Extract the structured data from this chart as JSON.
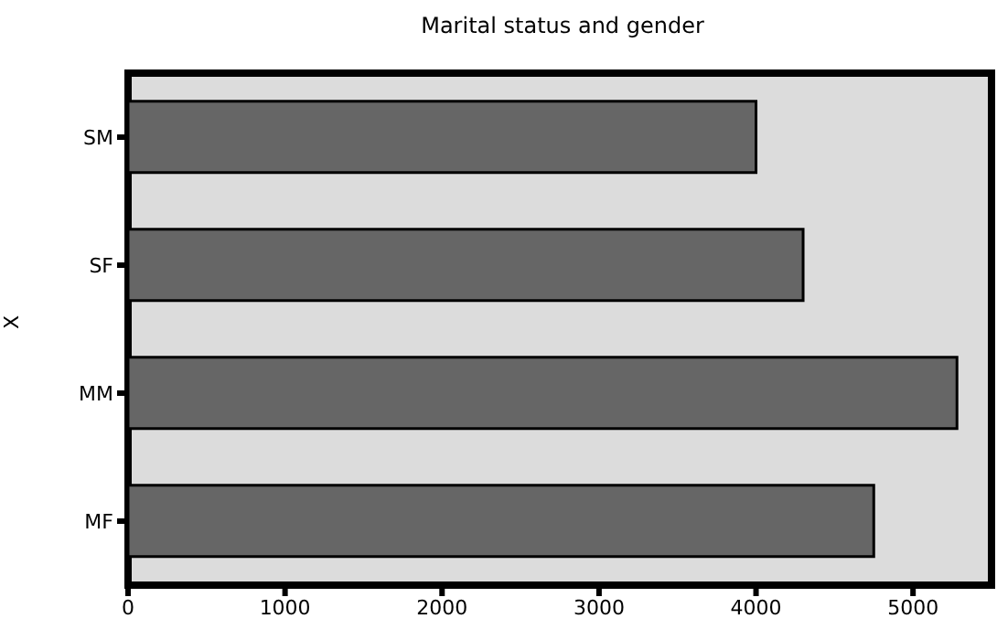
{
  "chart_data": {
    "type": "bar",
    "orientation": "horizontal",
    "title": "Marital status and gender",
    "ylabel": "X",
    "categories": [
      "SM",
      "SF",
      "MM",
      "MF"
    ],
    "values": [
      4000,
      4300,
      5280,
      4750
    ],
    "color": "#666666",
    "xlim": [
      0,
      5500
    ],
    "xticks": [
      0,
      1000,
      2000,
      3000,
      4000,
      5000
    ]
  }
}
